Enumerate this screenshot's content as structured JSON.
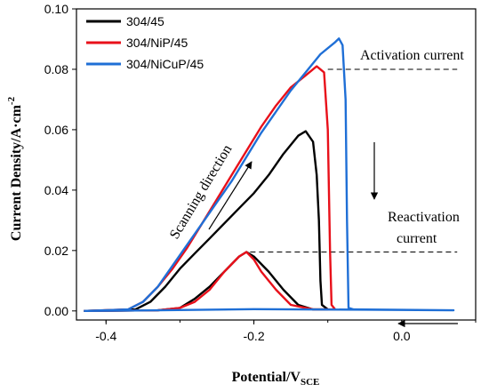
{
  "chart_data": {
    "type": "line",
    "xlabel": "Potential/V",
    "xlabel_sub": "SCE",
    "ylabel": "Current Density/A·cm",
    "ylabel_sup": "-2",
    "xlim": [
      -0.44,
      0.1
    ],
    "ylim": [
      -0.003,
      0.1
    ],
    "x_ticks": [
      {
        "value": -0.4,
        "label": "-0.4"
      },
      {
        "value": -0.2,
        "label": "-0.2"
      },
      {
        "value": 0.0,
        "label": "0.0"
      }
    ],
    "y_ticks": [
      {
        "value": 0.0,
        "label": "0.00"
      },
      {
        "value": 0.02,
        "label": "0.02"
      },
      {
        "value": 0.04,
        "label": "0.04"
      },
      {
        "value": 0.06,
        "label": "0.06"
      },
      {
        "value": 0.08,
        "label": "0.08"
      },
      {
        "value": 0.1,
        "label": "0.10"
      }
    ],
    "legend_position": "top-left",
    "series": [
      {
        "name": "304/45",
        "color": "#000000",
        "points": [
          [
            -0.43,
            0
          ],
          [
            -0.36,
            0.0005
          ],
          [
            -0.34,
            0.003
          ],
          [
            -0.32,
            0.008
          ],
          [
            -0.3,
            0.014
          ],
          [
            -0.28,
            0.019
          ],
          [
            -0.26,
            0.024
          ],
          [
            -0.24,
            0.029
          ],
          [
            -0.22,
            0.034
          ],
          [
            -0.2,
            0.039
          ],
          [
            -0.18,
            0.045
          ],
          [
            -0.16,
            0.052
          ],
          [
            -0.14,
            0.058
          ],
          [
            -0.13,
            0.0595
          ],
          [
            -0.12,
            0.056
          ],
          [
            -0.115,
            0.045
          ],
          [
            -0.112,
            0.03
          ],
          [
            -0.11,
            0.01
          ],
          [
            -0.108,
            0.002
          ],
          [
            -0.1,
            0.0005
          ],
          [
            -0.12,
            0.0005
          ],
          [
            -0.14,
            0.002
          ],
          [
            -0.16,
            0.007
          ],
          [
            -0.18,
            0.013
          ],
          [
            -0.2,
            0.018
          ],
          [
            -0.21,
            0.0195
          ],
          [
            -0.22,
            0.018
          ],
          [
            -0.24,
            0.013
          ],
          [
            -0.26,
            0.008
          ],
          [
            -0.28,
            0.004
          ],
          [
            -0.3,
            0.001
          ],
          [
            -0.33,
            0.0002
          ],
          [
            -0.43,
            0
          ]
        ]
      },
      {
        "name": "304/NiP/45",
        "color": "#e8101a",
        "points": [
          [
            -0.43,
            0
          ],
          [
            -0.37,
            0.0005
          ],
          [
            -0.35,
            0.003
          ],
          [
            -0.33,
            0.008
          ],
          [
            -0.31,
            0.014
          ],
          [
            -0.29,
            0.021
          ],
          [
            -0.27,
            0.029
          ],
          [
            -0.25,
            0.037
          ],
          [
            -0.23,
            0.045
          ],
          [
            -0.21,
            0.053
          ],
          [
            -0.19,
            0.061
          ],
          [
            -0.17,
            0.068
          ],
          [
            -0.15,
            0.074
          ],
          [
            -0.13,
            0.078
          ],
          [
            -0.115,
            0.081
          ],
          [
            -0.105,
            0.079
          ],
          [
            -0.1,
            0.06
          ],
          [
            -0.097,
            0.02
          ],
          [
            -0.095,
            0.002
          ],
          [
            -0.09,
            0.0005
          ],
          [
            -0.12,
            0.0005
          ],
          [
            -0.15,
            0.002
          ],
          [
            -0.17,
            0.007
          ],
          [
            -0.19,
            0.013
          ],
          [
            -0.2,
            0.017
          ],
          [
            -0.21,
            0.0195
          ],
          [
            -0.22,
            0.018
          ],
          [
            -0.24,
            0.013
          ],
          [
            -0.26,
            0.007
          ],
          [
            -0.28,
            0.003
          ],
          [
            -0.3,
            0.001
          ],
          [
            -0.33,
            0.0002
          ],
          [
            -0.43,
            0
          ]
        ]
      },
      {
        "name": "304/NiCuP/45",
        "color": "#1f6fd6",
        "points": [
          [
            -0.43,
            0
          ],
          [
            -0.37,
            0.0005
          ],
          [
            -0.35,
            0.003
          ],
          [
            -0.33,
            0.008
          ],
          [
            -0.31,
            0.015
          ],
          [
            -0.29,
            0.022
          ],
          [
            -0.27,
            0.029
          ],
          [
            -0.25,
            0.036
          ],
          [
            -0.23,
            0.043
          ],
          [
            -0.21,
            0.051
          ],
          [
            -0.19,
            0.059
          ],
          [
            -0.17,
            0.066
          ],
          [
            -0.15,
            0.073
          ],
          [
            -0.13,
            0.079
          ],
          [
            -0.11,
            0.085
          ],
          [
            -0.09,
            0.089
          ],
          [
            -0.085,
            0.0902
          ],
          [
            -0.08,
            0.088
          ],
          [
            -0.076,
            0.07
          ],
          [
            -0.074,
            0.03
          ],
          [
            -0.072,
            0.001
          ],
          [
            -0.065,
            0.0005
          ],
          [
            0.07,
            0.0002
          ],
          [
            -0.05,
            0.0004
          ],
          [
            -0.2,
            0.0006
          ],
          [
            -0.33,
            0.0002
          ],
          [
            -0.43,
            0
          ]
        ]
      }
    ],
    "reference_lines": [
      {
        "y": 0.08,
        "x_from": -0.1,
        "x_to": 0.075
      },
      {
        "y": 0.0195,
        "x_from": -0.205,
        "x_to": 0.075
      }
    ],
    "annotations": {
      "activation_current": "Activation current",
      "reactivation_line1": "Reactivation",
      "reactivation_line2": "current",
      "scanning_direction": "Scanning direction"
    }
  }
}
